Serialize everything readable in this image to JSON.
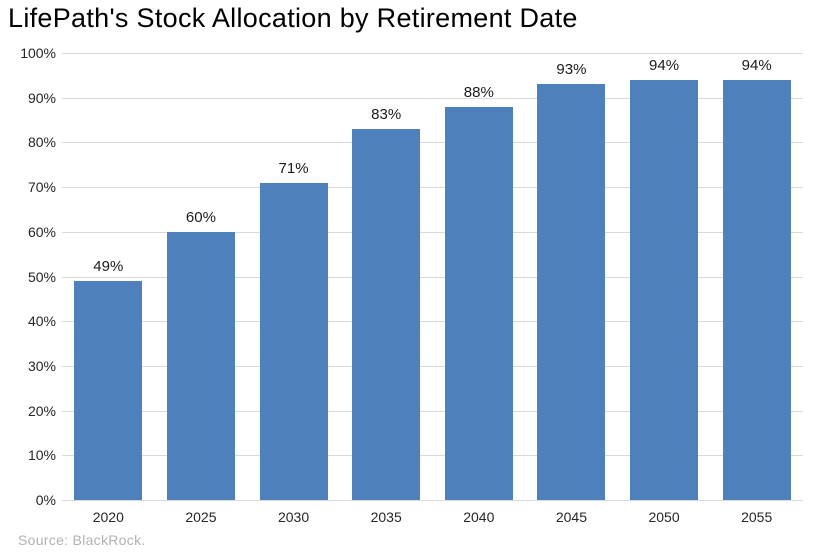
{
  "title": "LifePath's Stock Allocation by Retirement Date",
  "source": "Source: BlackRock.",
  "colors": {
    "bar": "#4E81BC",
    "gridline": "#D9D9D9",
    "title_text": "#000000",
    "tick_text": "#262626",
    "value_label_text": "#1A1A1A",
    "source_text": "#B2B2B2",
    "background": "#FFFFFF"
  },
  "chart_data": {
    "type": "bar",
    "title": "LifePath's Stock Allocation by Retirement Date",
    "categories": [
      "2020",
      "2025",
      "2030",
      "2035",
      "2040",
      "2045",
      "2050",
      "2055"
    ],
    "values": [
      49,
      60,
      71,
      83,
      88,
      93,
      94,
      94
    ],
    "value_labels": [
      "49%",
      "60%",
      "71%",
      "83%",
      "88%",
      "93%",
      "94%",
      "94%"
    ],
    "xlabel": "",
    "ylabel": "",
    "ylim": [
      0,
      100
    ],
    "ytick_step": 10,
    "ytick_labels": [
      "0%",
      "10%",
      "20%",
      "30%",
      "40%",
      "50%",
      "60%",
      "70%",
      "80%",
      "90%",
      "100%"
    ],
    "grid": "horizontal",
    "legend": "none",
    "source_note": "Source: BlackRock."
  }
}
